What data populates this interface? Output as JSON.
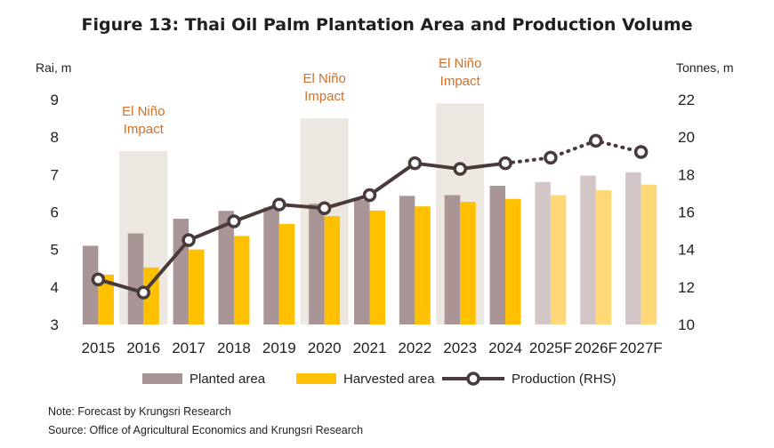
{
  "chart_data": {
    "type": "bar",
    "title": "Figure 13: Thai Oil Palm Plantation Area and Production Volume",
    "ylabel_left": "Rai, m",
    "ylabel_right": "Tonnes, m",
    "ylim_left": [
      3,
      9
    ],
    "ylim_right": [
      10,
      22
    ],
    "yticks_left": [
      "3",
      "4",
      "5",
      "6",
      "7",
      "8",
      "9"
    ],
    "yticks_right": [
      "10",
      "12",
      "14",
      "16",
      "18",
      "20",
      "22"
    ],
    "grid": false,
    "legend_position": "bottom",
    "categories": [
      "2015",
      "2016",
      "2017",
      "2018",
      "2019",
      "2020",
      "2021",
      "2022",
      "2023",
      "2024",
      "2025F",
      "2026F",
      "2027F"
    ],
    "forecast_from_index": 10,
    "series": [
      {
        "name": "Planted area",
        "kind": "bar",
        "axis": "left",
        "color": "#A99595",
        "forecast_color": "#D2C6C6",
        "values": [
          5.1,
          5.43,
          5.82,
          6.03,
          6.12,
          6.22,
          6.33,
          6.43,
          6.45,
          6.7,
          6.8,
          6.97,
          7.06
        ]
      },
      {
        "name": "Harvested area",
        "kind": "bar",
        "axis": "left",
        "color": "#FFC000",
        "forecast_color": "#FFD978",
        "values": [
          4.33,
          4.52,
          5.0,
          5.36,
          5.68,
          5.89,
          6.04,
          6.15,
          6.27,
          6.35,
          6.45,
          6.58,
          6.73
        ]
      },
      {
        "name": "Production (RHS)",
        "kind": "line",
        "axis": "right",
        "color": "#4A3B3B",
        "values": [
          12.4,
          11.7,
          14.5,
          15.5,
          16.4,
          16.2,
          16.9,
          18.6,
          18.3,
          18.6,
          18.9,
          19.8,
          19.2
        ]
      }
    ],
    "highlights": [
      {
        "label_lines": [
          "El Niño",
          "Impact"
        ],
        "category": "2016",
        "top": 7.63
      },
      {
        "label_lines": [
          "El Niño",
          "Impact"
        ],
        "category": "2020",
        "top": 8.5
      },
      {
        "label_lines": [
          "El Niño",
          "Impact"
        ],
        "category": "2023",
        "top": 8.9
      }
    ],
    "highlight_color": "#ECE8E1",
    "annotation_color": "#D0702A",
    "notes": [
      "Note: Forecast by Krungsri Research",
      "Source: Office of Agricultural Economics and Krungsri Research"
    ]
  }
}
